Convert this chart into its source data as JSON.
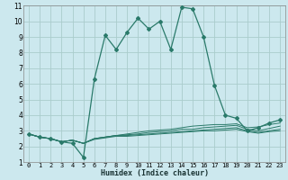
{
  "title": "",
  "xlabel": "Humidex (Indice chaleur)",
  "ylabel": "",
  "bg_color": "#cce8ee",
  "grid_color": "#aacccc",
  "line_color": "#2a7a6a",
  "xlim": [
    -0.5,
    23.5
  ],
  "ylim": [
    1,
    11
  ],
  "xticks": [
    0,
    1,
    2,
    3,
    4,
    5,
    6,
    7,
    8,
    9,
    10,
    11,
    12,
    13,
    14,
    15,
    16,
    17,
    18,
    19,
    20,
    21,
    22,
    23
  ],
  "yticks": [
    1,
    2,
    3,
    4,
    5,
    6,
    7,
    8,
    9,
    10,
    11
  ],
  "series": [
    [
      2.8,
      2.6,
      2.5,
      2.3,
      2.2,
      1.3,
      6.3,
      9.1,
      8.2,
      9.3,
      10.2,
      9.5,
      10.0,
      8.2,
      10.9,
      10.8,
      9.0,
      5.9,
      4.0,
      3.8,
      3.0,
      3.2,
      3.5,
      3.7
    ],
    [
      2.8,
      2.6,
      2.5,
      2.3,
      2.4,
      2.2,
      2.5,
      2.6,
      2.7,
      2.8,
      2.9,
      3.0,
      3.05,
      3.1,
      3.2,
      3.3,
      3.35,
      3.4,
      3.4,
      3.45,
      3.2,
      3.25,
      3.4,
      3.5
    ],
    [
      2.8,
      2.6,
      2.5,
      2.3,
      2.4,
      2.2,
      2.5,
      2.6,
      2.7,
      2.75,
      2.8,
      2.9,
      2.95,
      3.0,
      3.1,
      3.1,
      3.2,
      3.25,
      3.3,
      3.35,
      3.1,
      3.0,
      3.15,
      3.3
    ],
    [
      2.8,
      2.6,
      2.5,
      2.3,
      2.4,
      2.2,
      2.5,
      2.6,
      2.7,
      2.7,
      2.75,
      2.8,
      2.85,
      2.9,
      2.95,
      3.0,
      3.05,
      3.1,
      3.15,
      3.2,
      3.0,
      2.9,
      3.0,
      3.1
    ],
    [
      2.8,
      2.6,
      2.5,
      2.3,
      2.4,
      2.2,
      2.45,
      2.55,
      2.65,
      2.65,
      2.7,
      2.75,
      2.8,
      2.85,
      2.9,
      2.95,
      3.0,
      3.0,
      3.05,
      3.1,
      2.95,
      2.85,
      2.95,
      3.0
    ]
  ]
}
